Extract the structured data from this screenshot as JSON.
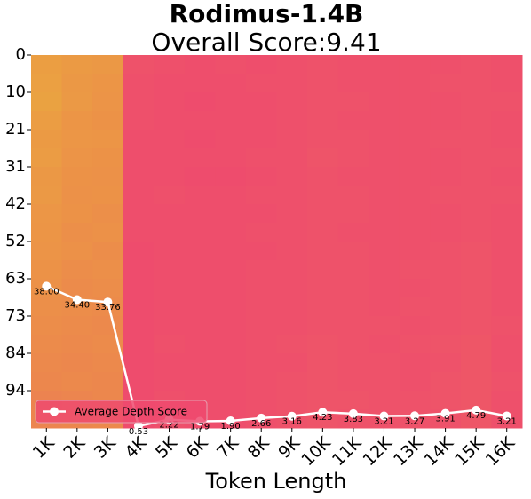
{
  "chart_data": {
    "type": "heatmap",
    "title": "Rodimus-1.4B",
    "subtitle": "Overall Score:9.41",
    "x_label": "Token Length",
    "categories": [
      "1K",
      "2K",
      "3K",
      "4K",
      "5K",
      "6K",
      "7K",
      "8K",
      "9K",
      "10K",
      "11K",
      "12K",
      "13K",
      "14K",
      "15K",
      "16K"
    ],
    "rows": [
      0,
      null,
      10,
      null,
      21,
      null,
      31,
      null,
      42,
      null,
      52,
      null,
      63,
      null,
      73,
      null,
      84,
      null,
      94,
      null
    ],
    "colorscale": [
      {
        "value": 0,
        "color": "#ee4a6e"
      },
      {
        "value": 35,
        "color": "#ec9148"
      },
      {
        "value": 60,
        "color": "#e9b23a"
      }
    ],
    "z": [
      [
        45,
        42,
        40,
        4,
        3,
        2,
        3,
        2,
        3,
        4,
        3,
        3,
        3,
        3,
        4,
        3
      ],
      [
        46,
        40,
        38,
        3,
        2,
        2,
        2,
        3,
        3,
        4,
        3,
        3,
        3,
        4,
        4,
        3
      ],
      [
        48,
        41,
        37,
        3,
        2,
        1,
        2,
        2,
        3,
        4,
        4,
        3,
        3,
        3,
        4,
        4
      ],
      [
        44,
        38,
        36,
        3,
        2,
        2,
        2,
        2,
        3,
        4,
        3,
        3,
        3,
        3,
        4,
        3
      ],
      [
        42,
        39,
        38,
        2,
        2,
        1,
        2,
        2,
        3,
        4,
        4,
        3,
        3,
        4,
        4,
        3
      ],
      [
        43,
        37,
        36,
        2,
        2,
        2,
        2,
        3,
        3,
        5,
        4,
        3,
        3,
        3,
        4,
        4
      ],
      [
        40,
        36,
        35,
        2,
        2,
        1,
        1,
        2,
        3,
        4,
        3,
        3,
        3,
        3,
        4,
        3
      ],
      [
        41,
        35,
        36,
        2,
        3,
        2,
        2,
        3,
        3,
        4,
        4,
        3,
        3,
        4,
        4,
        4
      ],
      [
        39,
        36,
        34,
        2,
        2,
        2,
        2,
        2,
        3,
        4,
        4,
        3,
        3,
        3,
        4,
        3
      ],
      [
        38,
        34,
        35,
        2,
        2,
        2,
        2,
        3,
        3,
        4,
        3,
        3,
        3,
        3,
        4,
        3
      ],
      [
        37,
        35,
        33,
        1,
        2,
        2,
        2,
        2,
        3,
        4,
        4,
        3,
        3,
        4,
        5,
        3
      ],
      [
        36,
        33,
        34,
        1,
        2,
        2,
        2,
        3,
        3,
        4,
        4,
        3,
        4,
        4,
        5,
        3
      ],
      [
        35,
        32,
        33,
        1,
        2,
        2,
        2,
        3,
        3,
        4,
        4,
        3,
        3,
        4,
        5,
        3
      ],
      [
        34,
        33,
        32,
        1,
        2,
        2,
        2,
        3,
        3,
        4,
        4,
        3,
        4,
        4,
        5,
        3
      ],
      [
        33,
        32,
        31,
        1,
        2,
        2,
        2,
        3,
        3,
        4,
        4,
        4,
        3,
        4,
        5,
        4
      ],
      [
        32,
        31,
        32,
        1,
        3,
        2,
        2,
        3,
        4,
        5,
        4,
        3,
        4,
        5,
        6,
        3
      ],
      [
        31,
        30,
        31,
        1,
        2,
        2,
        2,
        3,
        3,
        5,
        4,
        4,
        3,
        4,
        6,
        3
      ],
      [
        30,
        31,
        30,
        1,
        2,
        2,
        2,
        3,
        4,
        5,
        4,
        4,
        3,
        5,
        6,
        4
      ],
      [
        28,
        29,
        30,
        1,
        3,
        2,
        2,
        3,
        4,
        5,
        5,
        4,
        4,
        5,
        6,
        3
      ],
      [
        29,
        30,
        31,
        1,
        3,
        2,
        2,
        3,
        4,
        5,
        4,
        4,
        4,
        4,
        6,
        3
      ]
    ],
    "line": {
      "name": "Average Depth Score",
      "color": "#ffffff",
      "ylim": [
        0,
        100
      ],
      "values": [
        38.0,
        34.4,
        33.76,
        0.53,
        2.22,
        1.79,
        1.9,
        2.66,
        3.16,
        4.23,
        3.83,
        3.21,
        3.27,
        3.91,
        4.79,
        3.21
      ],
      "value_labels": [
        "38.00",
        "34.40",
        "33.76",
        "0.53",
        "2.22",
        "1.79",
        "1.90",
        "2.66",
        "3.16",
        "4.23",
        "3.83",
        "3.21",
        "3.27",
        "3.91",
        "4.79",
        "3.21"
      ]
    },
    "legend": "lower left"
  }
}
